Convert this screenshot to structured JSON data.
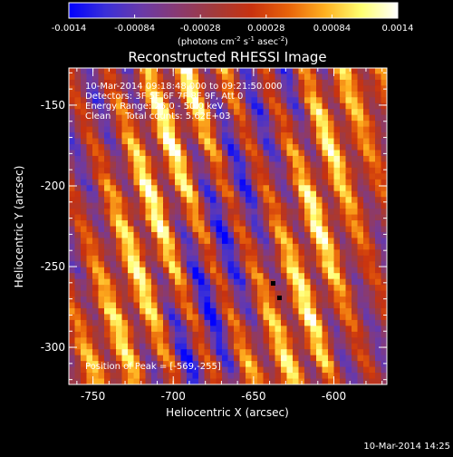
{
  "colorbar": {
    "ticks": [
      "-0.0014",
      "-0.00084",
      "-0.00028",
      "0.00028",
      "0.00084",
      "0.0014"
    ],
    "unit_label_prefix": "(photons cm",
    "unit_exp1": "-2",
    "unit_mid": " s",
    "unit_exp2": "-1",
    "unit_mid2": " asec",
    "unit_exp3": "-2",
    "unit_suffix": ")",
    "stops": [
      "#0000ff",
      "#3a2fd8",
      "#6a3aa8",
      "#8a3a70",
      "#a33a3a",
      "#c8320f",
      "#e8620a",
      "#ffb020",
      "#ffff70",
      "#ffffff"
    ]
  },
  "info": {
    "line1": "10-Mar-2014 09:18:48.000 to 09:21:50.000",
    "line2": "Detectors: 3F 5F 6F 7F 8F 9F, Att 0",
    "line3": "Energy Range: 25.0 - 50.0 keV",
    "line4": "Clean     Total counts: 5.62E+03",
    "peak": "Position of Peak = [-569,-255]"
  },
  "timestamp": "10-Mar-2014 14:25",
  "chart_data": {
    "type": "heatmap",
    "title": "Reconstructed RHESSI Image",
    "xlabel": "Heliocentric X (arcsec)",
    "ylabel": "Heliocentric Y (arcsec)",
    "xlim": [
      -765,
      -567
    ],
    "ylim": [
      -323,
      -127
    ],
    "xticks": [
      -750,
      -700,
      -650,
      -600
    ],
    "yticks": [
      -300,
      -250,
      -200,
      -150
    ],
    "colorbar_range": [
      -0.0014,
      0.0014
    ],
    "peak_position": [
      -569,
      -255
    ],
    "pattern": "diagonal stripes from upper-left to lower-right; bright (yellow/white) bands near x=-715, -690, -665, -610; faint bands near x=-740 and x=-580; blue minima near x=-755, -705 and x=-640"
  }
}
